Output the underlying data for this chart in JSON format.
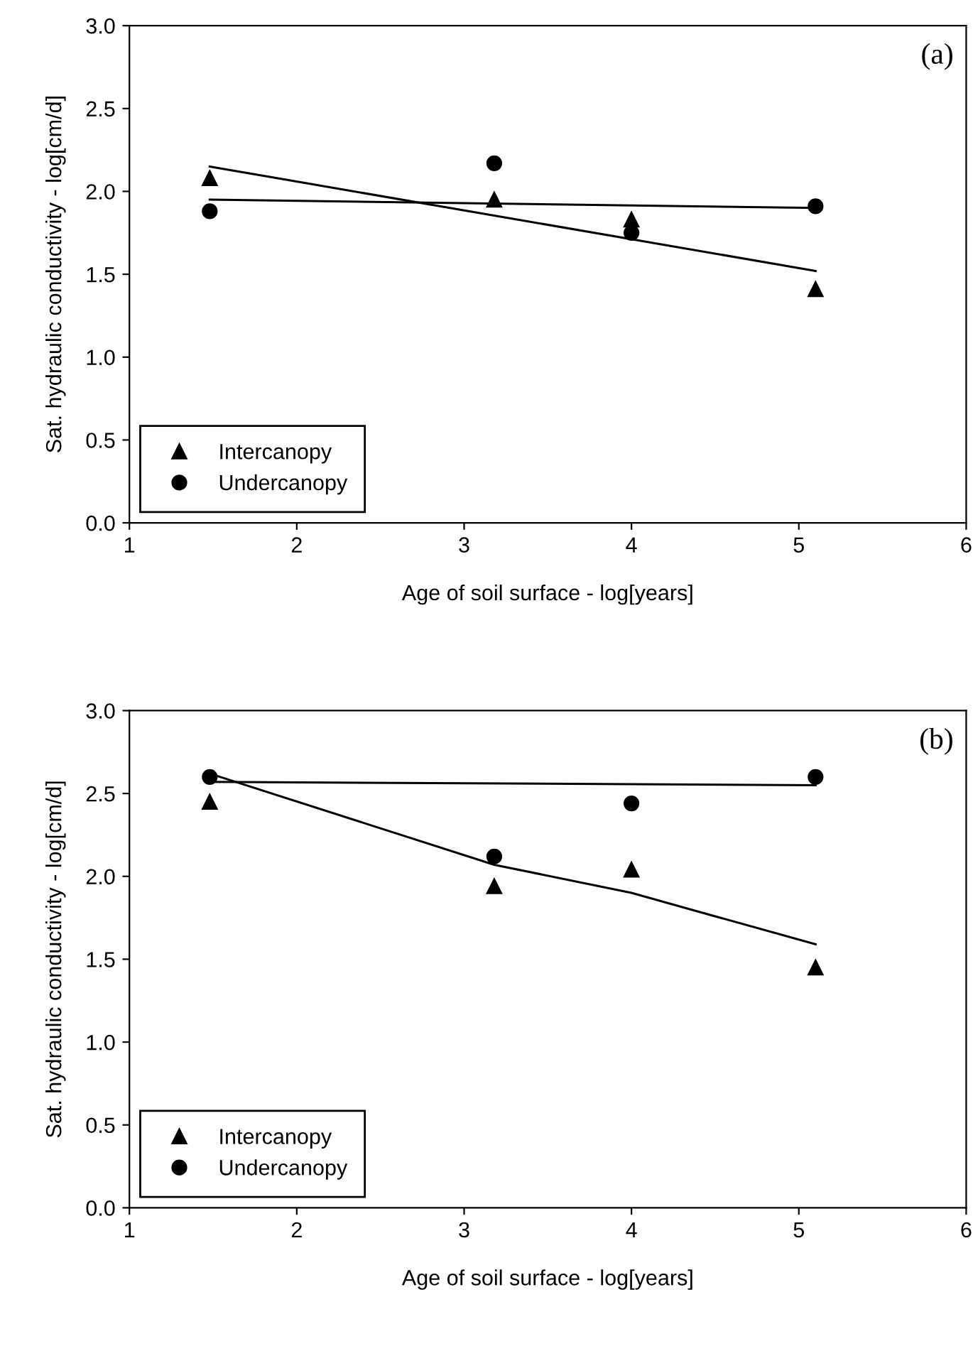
{
  "chart_data": [
    {
      "type": "scatter",
      "xlabel": "Age of soil surface - log[years]",
      "ylabel": "Sat. hydraulic conductivity - log[cm/d]",
      "annotations": [
        "(a)"
      ],
      "x": [
        1.48,
        3.18,
        4.0,
        5.1
      ],
      "xlim": [
        1,
        6
      ],
      "xticks": [
        1,
        2,
        3,
        4,
        5,
        6
      ],
      "ylim": [
        0,
        3
      ],
      "yticks": [
        {
          "value": 0,
          "label": "0.0"
        },
        {
          "value": 0.5,
          "label": "0.5"
        },
        {
          "value": 1,
          "label": "1.0"
        },
        {
          "value": 1.5,
          "label": "1.5"
        },
        {
          "value": 2,
          "label": "2.0"
        },
        {
          "value": 2.5,
          "label": "2.5"
        },
        {
          "value": 3,
          "label": "3.0"
        }
      ],
      "legend": "bottom left",
      "grid": false,
      "series": [
        {
          "name": "Intercanopy",
          "color": "#000000",
          "marker": "triangle",
          "values": [
            2.08,
            1.95,
            1.83,
            1.41
          ]
        },
        {
          "name": "Undercanopy",
          "color": "#000000",
          "marker": "circle",
          "values": [
            1.88,
            2.17,
            1.75,
            1.91
          ]
        },
        {
          "type": "line",
          "color": "#000000",
          "x": [
            1.48,
            5.1
          ],
          "values": [
            2.15,
            1.52
          ]
        },
        {
          "type": "line",
          "color": "#000000",
          "x": [
            1.48,
            5.1
          ],
          "values": [
            1.95,
            1.9
          ]
        }
      ]
    },
    {
      "type": "scatter",
      "xlabel": "Age of soil surface - log[years]",
      "ylabel": "Sat. hydraulic conductivity - log[cm/d]",
      "annotations": [
        "(b)"
      ],
      "x": [
        1.48,
        3.18,
        4.0,
        5.1
      ],
      "xlim": [
        1,
        6
      ],
      "xticks": [
        1,
        2,
        3,
        4,
        5,
        6
      ],
      "ylim": [
        0,
        3
      ],
      "yticks": [
        {
          "value": 0,
          "label": "0.0"
        },
        {
          "value": 0.5,
          "label": "0.5"
        },
        {
          "value": 1,
          "label": "1.0"
        },
        {
          "value": 1.5,
          "label": "1.5"
        },
        {
          "value": 2,
          "label": "2.0"
        },
        {
          "value": 2.5,
          "label": "2.5"
        },
        {
          "value": 3,
          "label": "3.0"
        }
      ],
      "legend": "bottom left",
      "grid": false,
      "series": [
        {
          "name": "Intercanopy",
          "color": "#000000",
          "marker": "triangle",
          "values": [
            2.45,
            1.94,
            2.04,
            1.45
          ]
        },
        {
          "name": "Undercanopy",
          "color": "#000000",
          "marker": "circle",
          "values": [
            2.6,
            2.12,
            2.44,
            2.6
          ]
        },
        {
          "type": "line",
          "color": "#000000",
          "x": [
            1.48,
            3.18,
            4.0,
            5.1
          ],
          "values": [
            2.62,
            2.07,
            1.9,
            1.59
          ]
        },
        {
          "type": "line",
          "color": "#000000",
          "x": [
            1.48,
            5.1
          ],
          "values": [
            2.57,
            2.55
          ]
        }
      ]
    }
  ]
}
